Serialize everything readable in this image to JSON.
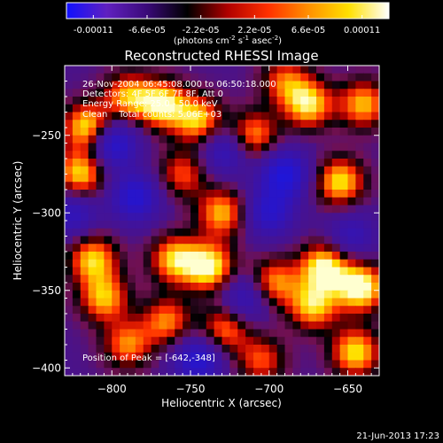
{
  "colorbar": {
    "tick_labels": [
      "-0.00011",
      "-6.6e-05",
      "-2.2e-05",
      "2.2e-05",
      "6.6e-05",
      "0.00011"
    ],
    "units_label_parts": [
      "(photons cm",
      "-2",
      " s",
      "-1",
      " asec",
      "-2",
      ")"
    ]
  },
  "chart_data": {
    "type": "heatmap",
    "title": "Reconstructed RHESSI Image",
    "xlabel": "Heliocentric X (arcsec)",
    "ylabel": "Heliocentric Y (arcsec)",
    "xlim": [
      -830,
      -630
    ],
    "ylim": [
      -405,
      -205
    ],
    "x_ticks": [
      -800,
      -750,
      -700,
      -650
    ],
    "y_ticks": [
      -250,
      -300,
      -350,
      -400
    ],
    "x_tick_labels": [
      "−800",
      "−750",
      "−700",
      "−650"
    ],
    "y_tick_labels": [
      "−250",
      "−300",
      "−350",
      "−400"
    ],
    "color_range": [
      -0.00011,
      0.00011
    ],
    "colormap": [
      "#1010ff",
      "#6020c0",
      "#3a0a78",
      "#000000",
      "#b00000",
      "#ff3000",
      "#ff9000",
      "#ffe000",
      "#ffffff"
    ],
    "peak_position": [
      -642,
      -348
    ],
    "blobs": [
      {
        "x": -815,
        "y": -245,
        "v": 1.0
      },
      {
        "x": -820,
        "y": -275,
        "v": 0.9
      },
      {
        "x": -812,
        "y": -330,
        "v": 0.85
      },
      {
        "x": -805,
        "y": -355,
        "v": 0.8
      },
      {
        "x": -790,
        "y": -225,
        "v": 0.75
      },
      {
        "x": -768,
        "y": -230,
        "v": 0.95
      },
      {
        "x": -745,
        "y": -240,
        "v": 0.85
      },
      {
        "x": -755,
        "y": -275,
        "v": 0.6
      },
      {
        "x": -760,
        "y": -330,
        "v": 0.85
      },
      {
        "x": -765,
        "y": -370,
        "v": 0.7
      },
      {
        "x": -738,
        "y": -335,
        "v": 1.0
      },
      {
        "x": -730,
        "y": -300,
        "v": 0.8
      },
      {
        "x": -728,
        "y": -375,
        "v": 0.7
      },
      {
        "x": -710,
        "y": -250,
        "v": 0.75
      },
      {
        "x": -697,
        "y": -345,
        "v": 0.75
      },
      {
        "x": -675,
        "y": -230,
        "v": 0.9
      },
      {
        "x": -690,
        "y": -215,
        "v": 0.6
      },
      {
        "x": -665,
        "y": -335,
        "v": 1.0
      },
      {
        "x": -672,
        "y": -360,
        "v": 0.85
      },
      {
        "x": -655,
        "y": -280,
        "v": 0.9
      },
      {
        "x": -640,
        "y": -230,
        "v": 0.8
      },
      {
        "x": -642,
        "y": -348,
        "v": 1.1
      },
      {
        "x": -645,
        "y": -390,
        "v": 0.9
      },
      {
        "x": -790,
        "y": -385,
        "v": 0.7
      },
      {
        "x": -705,
        "y": -395,
        "v": 0.6
      },
      {
        "x": -800,
        "y": -255,
        "v": -0.9
      },
      {
        "x": -785,
        "y": -290,
        "v": -0.8
      },
      {
        "x": -728,
        "y": -260,
        "v": -0.6
      },
      {
        "x": -690,
        "y": -275,
        "v": -0.9
      },
      {
        "x": -700,
        "y": -300,
        "v": -0.7
      },
      {
        "x": -745,
        "y": -395,
        "v": -0.8
      },
      {
        "x": -825,
        "y": -300,
        "v": -0.6
      },
      {
        "x": -715,
        "y": -355,
        "v": -0.6
      },
      {
        "x": -648,
        "y": -315,
        "v": -0.5
      }
    ]
  },
  "annotations": {
    "lines": [
      "26-Nov-2004 06:45:08.000 to 06:50:18.000",
      "Detectors: 4F 5F 6F 7F 8F, Att 0",
      "Energy Range: 25.0 - 50.0 keV",
      "Clean    Total counts: 5.06E+03"
    ],
    "peak_label": "Position of Peak = [-642,-348]"
  },
  "footer": {
    "timestamp": "21-Jun-2013 17:23"
  }
}
